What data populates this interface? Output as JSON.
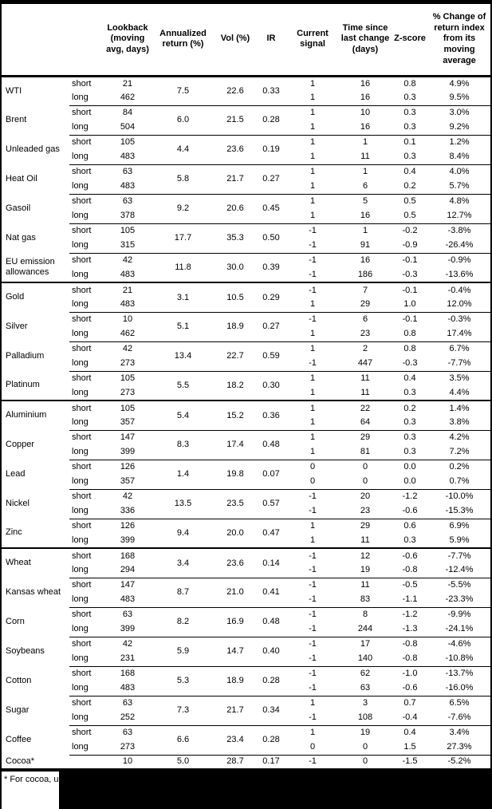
{
  "header": {
    "commodity": "",
    "leg": "",
    "lookback": "Lookback (moving avg, days)",
    "annualized": "Annualized return (%)",
    "vol": "Vol (%)",
    "ir": "IR",
    "signal": "Current signal",
    "time": "Time since last change (days)",
    "zscore": "Z-score",
    "pct_change": "% Change of return index from its moving average"
  },
  "commodities": [
    {
      "name": "WTI",
      "section_start": false,
      "annualized": "7.5",
      "vol": "22.6",
      "ir": "0.33",
      "rows": [
        {
          "leg": "short",
          "lookback": "21",
          "signal": "1",
          "time": "16",
          "zscore": "0.8",
          "pct": "4.9%"
        },
        {
          "leg": "long",
          "lookback": "462",
          "signal": "1",
          "time": "16",
          "zscore": "0.3",
          "pct": "9.5%"
        }
      ]
    },
    {
      "name": "Brent",
      "section_start": false,
      "annualized": "6.0",
      "vol": "21.5",
      "ir": "0.28",
      "rows": [
        {
          "leg": "short",
          "lookback": "84",
          "signal": "1",
          "time": "10",
          "zscore": "0.3",
          "pct": "3.0%"
        },
        {
          "leg": "long",
          "lookback": "504",
          "signal": "1",
          "time": "16",
          "zscore": "0.3",
          "pct": "9.2%"
        }
      ]
    },
    {
      "name": "Unleaded gas",
      "section_start": false,
      "annualized": "4.4",
      "vol": "23.6",
      "ir": "0.19",
      "rows": [
        {
          "leg": "short",
          "lookback": "105",
          "signal": "1",
          "time": "1",
          "zscore": "0.1",
          "pct": "1.2%"
        },
        {
          "leg": "long",
          "lookback": "483",
          "signal": "1",
          "time": "11",
          "zscore": "0.3",
          "pct": "8.4%"
        }
      ]
    },
    {
      "name": "Heat Oil",
      "section_start": false,
      "annualized": "5.8",
      "vol": "21.7",
      "ir": "0.27",
      "rows": [
        {
          "leg": "short",
          "lookback": "63",
          "signal": "1",
          "time": "1",
          "zscore": "0.4",
          "pct": "4.0%"
        },
        {
          "leg": "long",
          "lookback": "483",
          "signal": "1",
          "time": "6",
          "zscore": "0.2",
          "pct": "5.7%"
        }
      ]
    },
    {
      "name": "Gasoil",
      "section_start": false,
      "annualized": "9.2",
      "vol": "20.6",
      "ir": "0.45",
      "rows": [
        {
          "leg": "short",
          "lookback": "63",
          "signal": "1",
          "time": "5",
          "zscore": "0.5",
          "pct": "4.8%"
        },
        {
          "leg": "long",
          "lookback": "378",
          "signal": "1",
          "time": "16",
          "zscore": "0.5",
          "pct": "12.7%"
        }
      ]
    },
    {
      "name": "Nat gas",
      "section_start": false,
      "annualized": "17.7",
      "vol": "35.3",
      "ir": "0.50",
      "rows": [
        {
          "leg": "short",
          "lookback": "105",
          "signal": "-1",
          "time": "1",
          "zscore": "-0.2",
          "pct": "-3.8%"
        },
        {
          "leg": "long",
          "lookback": "315",
          "signal": "-1",
          "time": "91",
          "zscore": "-0.9",
          "pct": "-26.4%"
        }
      ]
    },
    {
      "name": "EU emission allowances",
      "section_start": false,
      "annualized": "11.8",
      "vol": "30.0",
      "ir": "0.39",
      "rows": [
        {
          "leg": "short",
          "lookback": "42",
          "signal": "-1",
          "time": "16",
          "zscore": "-0.1",
          "pct": "-0.9%"
        },
        {
          "leg": "long",
          "lookback": "483",
          "signal": "-1",
          "time": "186",
          "zscore": "-0.3",
          "pct": "-13.6%"
        }
      ]
    },
    {
      "name": "Gold",
      "section_start": true,
      "annualized": "3.1",
      "vol": "10.5",
      "ir": "0.29",
      "rows": [
        {
          "leg": "short",
          "lookback": "21",
          "signal": "-1",
          "time": "7",
          "zscore": "-0.1",
          "pct": "-0.4%"
        },
        {
          "leg": "long",
          "lookback": "483",
          "signal": "1",
          "time": "29",
          "zscore": "1.0",
          "pct": "12.0%"
        }
      ]
    },
    {
      "name": "Silver",
      "section_start": false,
      "annualized": "5.1",
      "vol": "18.9",
      "ir": "0.27",
      "rows": [
        {
          "leg": "short",
          "lookback": "10",
          "signal": "-1",
          "time": "6",
          "zscore": "-0.1",
          "pct": "-0.3%"
        },
        {
          "leg": "long",
          "lookback": "462",
          "signal": "1",
          "time": "23",
          "zscore": "0.8",
          "pct": "17.4%"
        }
      ]
    },
    {
      "name": "Palladium",
      "section_start": false,
      "annualized": "13.4",
      "vol": "22.7",
      "ir": "0.59",
      "rows": [
        {
          "leg": "short",
          "lookback": "42",
          "signal": "1",
          "time": "2",
          "zscore": "0.8",
          "pct": "6.7%"
        },
        {
          "leg": "long",
          "lookback": "273",
          "signal": "-1",
          "time": "447",
          "zscore": "-0.3",
          "pct": "-7.7%"
        }
      ]
    },
    {
      "name": "Platinum",
      "section_start": false,
      "annualized": "5.5",
      "vol": "18.2",
      "ir": "0.30",
      "rows": [
        {
          "leg": "short",
          "lookback": "105",
          "signal": "1",
          "time": "11",
          "zscore": "0.4",
          "pct": "3.5%"
        },
        {
          "leg": "long",
          "lookback": "273",
          "signal": "1",
          "time": "11",
          "zscore": "0.3",
          "pct": "4.4%"
        }
      ]
    },
    {
      "name": "Aluminium",
      "section_start": true,
      "annualized": "5.4",
      "vol": "15.2",
      "ir": "0.36",
      "rows": [
        {
          "leg": "short",
          "lookback": "105",
          "signal": "1",
          "time": "22",
          "zscore": "0.2",
          "pct": "1.4%"
        },
        {
          "leg": "long",
          "lookback": "357",
          "signal": "1",
          "time": "64",
          "zscore": "0.3",
          "pct": "3.8%"
        }
      ]
    },
    {
      "name": "Copper",
      "section_start": false,
      "annualized": "8.3",
      "vol": "17.4",
      "ir": "0.48",
      "rows": [
        {
          "leg": "short",
          "lookback": "147",
          "signal": "1",
          "time": "29",
          "zscore": "0.3",
          "pct": "4.2%"
        },
        {
          "leg": "long",
          "lookback": "399",
          "signal": "1",
          "time": "81",
          "zscore": "0.3",
          "pct": "7.2%"
        }
      ]
    },
    {
      "name": "Lead",
      "section_start": false,
      "annualized": "1.4",
      "vol": "19.8",
      "ir": "0.07",
      "rows": [
        {
          "leg": "short",
          "lookback": "126",
          "signal": "0",
          "time": "0",
          "zscore": "0.0",
          "pct": "0.2%"
        },
        {
          "leg": "long",
          "lookback": "357",
          "signal": "0",
          "time": "0",
          "zscore": "0.0",
          "pct": "0.7%"
        }
      ]
    },
    {
      "name": "Nickel",
      "section_start": false,
      "annualized": "13.5",
      "vol": "23.5",
      "ir": "0.57",
      "rows": [
        {
          "leg": "short",
          "lookback": "42",
          "signal": "-1",
          "time": "20",
          "zscore": "-1.2",
          "pct": "-10.0%"
        },
        {
          "leg": "long",
          "lookback": "336",
          "signal": "-1",
          "time": "23",
          "zscore": "-0.6",
          "pct": "-15.3%"
        }
      ]
    },
    {
      "name": "Zinc",
      "section_start": false,
      "annualized": "9.4",
      "vol": "20.0",
      "ir": "0.47",
      "rows": [
        {
          "leg": "short",
          "lookback": "126",
          "signal": "1",
          "time": "29",
          "zscore": "0.6",
          "pct": "6.9%"
        },
        {
          "leg": "long",
          "lookback": "399",
          "signal": "1",
          "time": "11",
          "zscore": "0.3",
          "pct": "5.9%"
        }
      ]
    },
    {
      "name": "Wheat",
      "section_start": true,
      "annualized": "3.4",
      "vol": "23.6",
      "ir": "0.14",
      "rows": [
        {
          "leg": "short",
          "lookback": "168",
          "signal": "-1",
          "time": "12",
          "zscore": "-0.6",
          "pct": "-7.7%"
        },
        {
          "leg": "long",
          "lookback": "294",
          "signal": "-1",
          "time": "19",
          "zscore": "-0.8",
          "pct": "-12.4%"
        }
      ]
    },
    {
      "name": "Kansas wheat",
      "section_start": false,
      "annualized": "8.7",
      "vol": "21.0",
      "ir": "0.41",
      "rows": [
        {
          "leg": "short",
          "lookback": "147",
          "signal": "-1",
          "time": "11",
          "zscore": "-0.5",
          "pct": "-5.5%"
        },
        {
          "leg": "long",
          "lookback": "483",
          "signal": "-1",
          "time": "83",
          "zscore": "-1.1",
          "pct": "-23.3%"
        }
      ]
    },
    {
      "name": "Corn",
      "section_start": false,
      "annualized": "8.2",
      "vol": "16.9",
      "ir": "0.48",
      "rows": [
        {
          "leg": "short",
          "lookback": "63",
          "signal": "-1",
          "time": "8",
          "zscore": "-1.2",
          "pct": "-9.9%"
        },
        {
          "leg": "long",
          "lookback": "399",
          "signal": "-1",
          "time": "244",
          "zscore": "-1.3",
          "pct": "-24.1%"
        }
      ]
    },
    {
      "name": "Soybeans",
      "section_start": false,
      "annualized": "5.9",
      "vol": "14.7",
      "ir": "0.40",
      "rows": [
        {
          "leg": "short",
          "lookback": "42",
          "signal": "-1",
          "time": "17",
          "zscore": "-0.8",
          "pct": "-4.6%"
        },
        {
          "leg": "long",
          "lookback": "231",
          "signal": "-1",
          "time": "140",
          "zscore": "-0.8",
          "pct": "-10.8%"
        }
      ]
    },
    {
      "name": "Cotton",
      "section_start": false,
      "annualized": "5.3",
      "vol": "18.9",
      "ir": "0.28",
      "rows": [
        {
          "leg": "short",
          "lookback": "168",
          "signal": "-1",
          "time": "62",
          "zscore": "-1.0",
          "pct": "-13.7%"
        },
        {
          "leg": "long",
          "lookback": "483",
          "signal": "-1",
          "time": "63",
          "zscore": "-0.6",
          "pct": "-16.0%"
        }
      ]
    },
    {
      "name": "Sugar",
      "section_start": false,
      "annualized": "7.3",
      "vol": "21.7",
      "ir": "0.34",
      "rows": [
        {
          "leg": "short",
          "lookback": "63",
          "signal": "1",
          "time": "3",
          "zscore": "0.7",
          "pct": "6.5%"
        },
        {
          "leg": "long",
          "lookback": "252",
          "signal": "-1",
          "time": "108",
          "zscore": "-0.4",
          "pct": "-7.6%"
        }
      ]
    },
    {
      "name": "Coffee",
      "section_start": false,
      "annualized": "6.6",
      "vol": "23.4",
      "ir": "0.28",
      "rows": [
        {
          "leg": "short",
          "lookback": "63",
          "signal": "1",
          "time": "19",
          "zscore": "0.4",
          "pct": "3.4%"
        },
        {
          "leg": "long",
          "lookback": "273",
          "signal": "0",
          "time": "0",
          "zscore": "1.5",
          "pct": "27.3%"
        }
      ]
    },
    {
      "name": "Cocoa*",
      "section_start": false,
      "annualized": "5.0",
      "vol": "28.7",
      "ir": "0.17",
      "rows": [
        {
          "leg": "",
          "lookback": "10",
          "signal": "-1",
          "time": "0",
          "zscore": "-1.5",
          "pct": "-5.2%"
        }
      ]
    }
  ],
  "footnote": {
    "visible_text": "* For cocoa, uses o",
    "redacted": true,
    "redaction_color": "#000000"
  }
}
